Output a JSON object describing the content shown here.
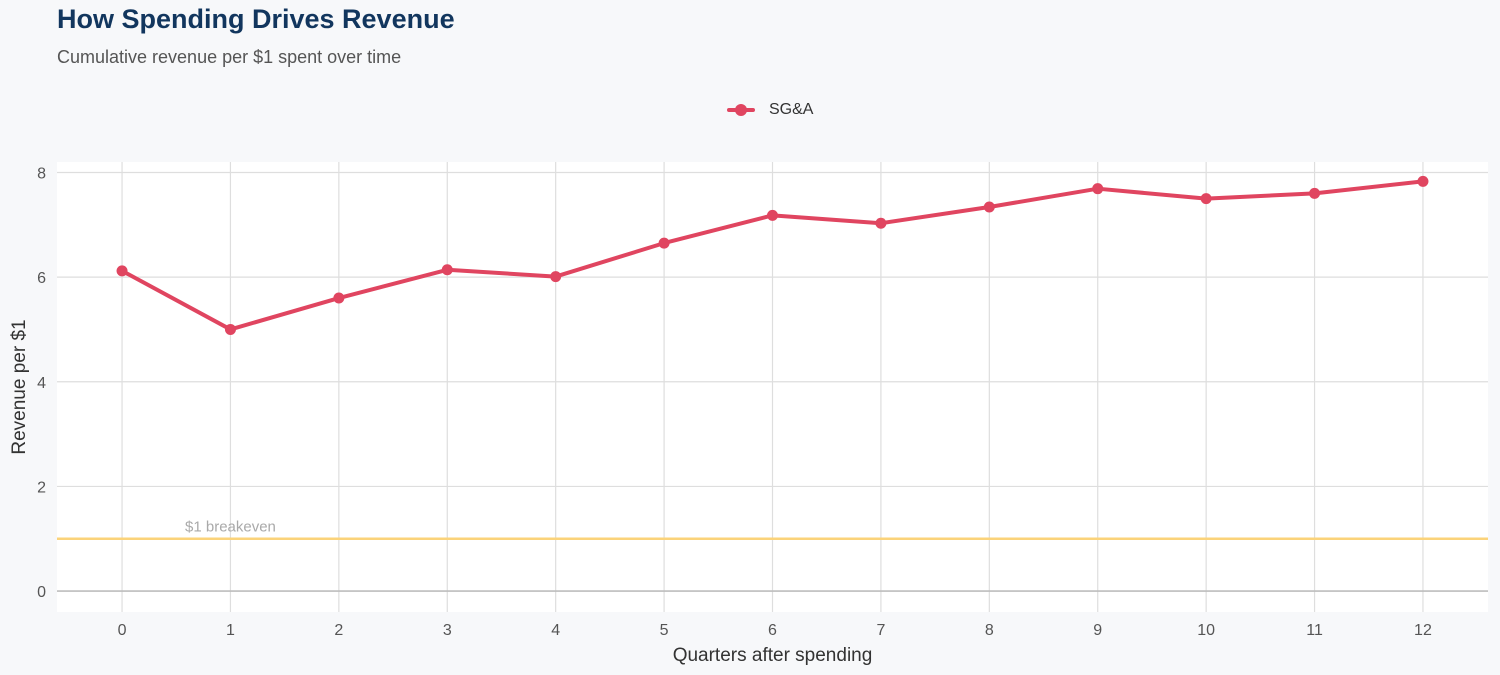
{
  "title": "How Spending Drives Revenue",
  "subtitle": "Cumulative revenue per $1 spent over time",
  "colors": {
    "series": "#e04560",
    "breakeven": "#fbd37a",
    "grid": "#dedede",
    "axis_text": "#555555",
    "title": "#12365e",
    "panel": "#ffffff",
    "background": "#f7f8fa"
  },
  "chart_data": {
    "type": "line",
    "xlabel": "Quarters after spending",
    "ylabel": "Revenue per $1",
    "x": [
      0,
      1,
      2,
      3,
      4,
      5,
      6,
      7,
      8,
      9,
      10,
      11,
      12
    ],
    "xlim": [
      -0.6,
      12.6
    ],
    "ylim": [
      -0.4,
      8.2
    ],
    "y_ticks": [
      0,
      2,
      4,
      6,
      8
    ],
    "grid": true,
    "legend_position": "top-center",
    "series": [
      {
        "name": "SG&A",
        "values": [
          6.12,
          5.0,
          5.6,
          6.14,
          6.01,
          6.65,
          7.18,
          7.03,
          7.34,
          7.69,
          7.5,
          7.6,
          7.83
        ]
      }
    ],
    "reference_line": {
      "y": 1,
      "label": "$1 breakeven"
    }
  }
}
